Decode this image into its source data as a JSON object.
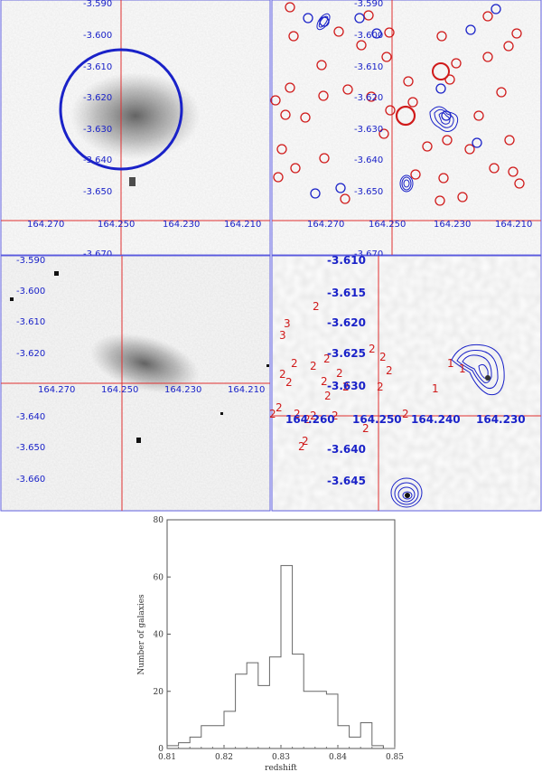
{
  "colors": {
    "blue": "#1a22c8",
    "red": "#d01a1a",
    "grey": "#555555"
  },
  "panel_top_left": {
    "ra_ticks": [
      "164.270",
      "164.250",
      "164.230",
      "164.210"
    ],
    "dec_ticks": [
      "-3.590",
      "-3.600",
      "-3.610",
      "-3.620",
      "-3.630",
      "-3.640",
      "-3.650",
      "-3.670"
    ]
  },
  "panel_top_right": {
    "ra_ticks": [
      "164.270",
      "164.250",
      "164.230",
      "164.210"
    ],
    "dec_ticks": [
      "-3.590",
      "-3.600",
      "-3.610",
      "-3.620",
      "-3.630",
      "-3.640",
      "-3.650",
      "-3.670"
    ]
  },
  "panel_mid_left": {
    "ra_ticks": [
      "164.270",
      "164.250",
      "164.230",
      "164.210"
    ],
    "dec_ticks": [
      "-3.590",
      "-3.600",
      "-3.610",
      "-3.620",
      "-3.640",
      "-3.650",
      "-3.660"
    ]
  },
  "panel_mid_right": {
    "ra_ticks": [
      "164.260",
      "164.250",
      "164.240",
      "164.230"
    ],
    "dec_ticks": [
      "-3.610",
      "-3.615",
      "-3.620",
      "-3.625",
      "-3.630",
      "-3.640",
      "-3.645"
    ],
    "redshift_marks": [
      "2",
      "3",
      "3",
      "2",
      "2",
      "2",
      "2",
      "2",
      "2",
      "2",
      "2",
      "2",
      "2",
      "2",
      "2",
      "2",
      "2",
      "2",
      "2",
      "2",
      "2",
      "2",
      "2",
      "2",
      "2",
      "2",
      "1",
      "1",
      "1"
    ]
  },
  "chart_data": {
    "type": "bar",
    "title": "",
    "xlabel": "redshift",
    "ylabel": "Number of galaxies",
    "xlim": [
      0.81,
      0.85
    ],
    "ylim": [
      0,
      80
    ],
    "x_ticks": [
      "0.81",
      "0.82",
      "0.83",
      "0.84",
      "0.85"
    ],
    "y_ticks": [
      "0",
      "20",
      "40",
      "60",
      "80"
    ],
    "bin_width": 0.002,
    "bin_left_edges": [
      0.81,
      0.812,
      0.814,
      0.816,
      0.818,
      0.82,
      0.822,
      0.824,
      0.826,
      0.828,
      0.83,
      0.832,
      0.834,
      0.836,
      0.838,
      0.84,
      0.842,
      0.844,
      0.846,
      0.848
    ],
    "values": [
      1,
      2,
      4,
      8,
      8,
      13,
      26,
      30,
      22,
      32,
      64,
      33,
      20,
      20,
      19,
      8,
      4,
      9,
      1,
      0
    ]
  }
}
